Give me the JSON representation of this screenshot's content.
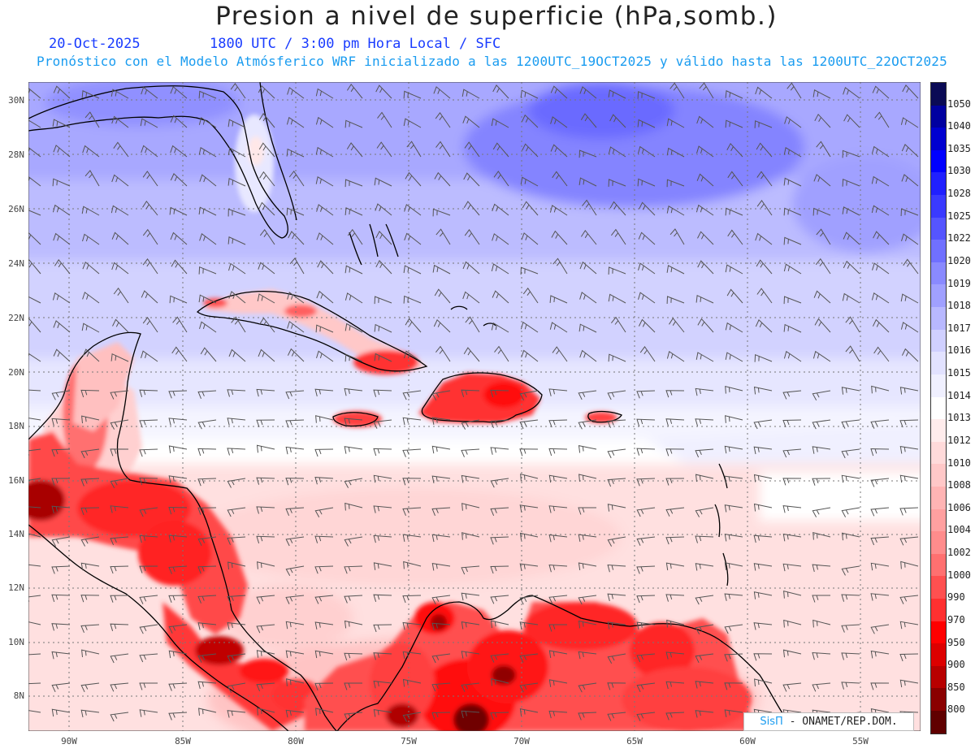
{
  "header": {
    "title": "Presion a nivel de superficie (hPa,somb.)",
    "date": "20-Oct-2025",
    "time_info": "1800 UTC / 3:00 pm Hora Local / SFC",
    "model_info": "Pronóstico con el Modelo Atmósferico WRF inicializado a las 1200UTC_19OCT2025 y válido hasta las  1200UTC_22OCT2025"
  },
  "map": {
    "lat_labels": [
      "30N",
      "28N",
      "26N",
      "24N",
      "22N",
      "20N",
      "18N",
      "16N",
      "14N",
      "12N",
      "10N",
      "8N"
    ],
    "lon_labels": [
      "90W",
      "85W",
      "80W",
      "75W",
      "70W",
      "65W",
      "60W",
      "55W"
    ]
  },
  "colorbar": {
    "labels": [
      "1050",
      "1040",
      "1035",
      "1030",
      "1028",
      "1025",
      "1022",
      "1020",
      "1019",
      "1018",
      "1017",
      "1016",
      "1015",
      "1014",
      "1013",
      "1012",
      "1010",
      "1008",
      "1006",
      "1004",
      "1002",
      "1000",
      "990",
      "970",
      "950",
      "900",
      "850",
      "800"
    ],
    "colors": [
      "#0a0a55",
      "#0000a0",
      "#0000d0",
      "#0000ff",
      "#2020ff",
      "#3a3aff",
      "#5555ff",
      "#7070ff",
      "#8a8aff",
      "#a0a0ff",
      "#b8b8ff",
      "#d0d0ff",
      "#e2e2ff",
      "#f0f0ff",
      "#ffffff",
      "#ffecec",
      "#ffdada",
      "#ffc8c8",
      "#ffb4b4",
      "#ffa0a0",
      "#ff8c8c",
      "#ff7070",
      "#ff5050",
      "#ff3030",
      "#ff0000",
      "#dd0000",
      "#b80000",
      "#8a0000",
      "#600000"
    ]
  },
  "credit": {
    "logo": "SisΠ",
    "org": " - ONAMET/REP.DOM."
  }
}
